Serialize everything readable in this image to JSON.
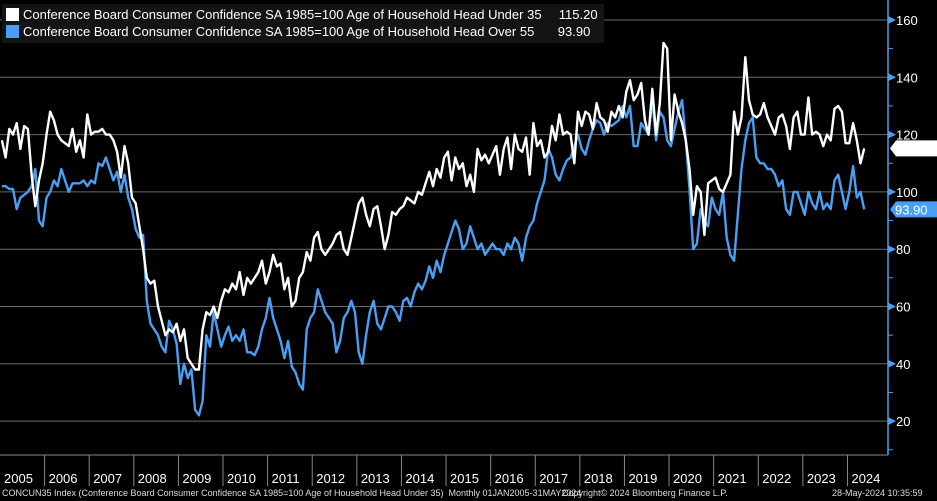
{
  "chart_data": {
    "type": "line",
    "x_start": "2005-01",
    "x_end": "2024-05",
    "frequency": "Monthly",
    "ylim": [
      15,
      168
    ],
    "y_ticks": [
      20,
      40,
      60,
      80,
      100,
      120,
      140,
      160
    ],
    "x_tick_labels": [
      "2005",
      "2006",
      "2007",
      "2008",
      "2009",
      "2010",
      "2011",
      "2012",
      "2013",
      "2014",
      "2015",
      "2016",
      "2017",
      "2018",
      "2019",
      "2020",
      "2021",
      "2022",
      "2023",
      "2024"
    ],
    "grid": true,
    "legend": "top-left",
    "axis_side": "right",
    "series": [
      {
        "name": "Conference Board Consumer Confidence SA 1985=100 Age of Household Head Under 35",
        "last": "115.20",
        "color": "#ffffff",
        "values": [
          118,
          112,
          122,
          120,
          124,
          115,
          123,
          122,
          106,
          95,
          104,
          110,
          120,
          128,
          125,
          120,
          118,
          117,
          116,
          122,
          114,
          118,
          112,
          127,
          120,
          121,
          121,
          122,
          120,
          120,
          118,
          114,
          105,
          116,
          110,
          98,
          96,
          88,
          80,
          70,
          68,
          69,
          60,
          55,
          50,
          52,
          51,
          54,
          48,
          52,
          42,
          40,
          38,
          38,
          52,
          58,
          57,
          60,
          56,
          62,
          66,
          65,
          68,
          66,
          72,
          64,
          70,
          68,
          70,
          72,
          76,
          68,
          72,
          78,
          74,
          75,
          66,
          70,
          60,
          62,
          70,
          72,
          79,
          76,
          84,
          86,
          80,
          78,
          80,
          82,
          85,
          86,
          80,
          78,
          84,
          90,
          96,
          98,
          92,
          88,
          94,
          95,
          88,
          80,
          85,
          93,
          92,
          94,
          95,
          98,
          97,
          96,
          100,
          99,
          103,
          107,
          102,
          108,
          105,
          112,
          114,
          104,
          112,
          108,
          110,
          102,
          106,
          100,
          115,
          111,
          113,
          110,
          113,
          116,
          106,
          115,
          119,
          108,
          120,
          115,
          114,
          119,
          106,
          124,
          116,
          118,
          112,
          114,
          123,
          118,
          127,
          120,
          121,
          120,
          110,
          128,
          123,
          128,
          127,
          122,
          131,
          126,
          125,
          121,
          128,
          126,
          130,
          126,
          135,
          139,
          132,
          134,
          138,
          125,
          120,
          136,
          120,
          131,
          152,
          150,
          118,
          134,
          128,
          124,
          118,
          108,
          92,
          102,
          100,
          85,
          103,
          104,
          105,
          101,
          100,
          103,
          106,
          128,
          120,
          126,
          147,
          132,
          127,
          126,
          127,
          131,
          126,
          123,
          120,
          126,
          127,
          123,
          115,
          126,
          128,
          120,
          120,
          133,
          120,
          121,
          120,
          116,
          120,
          118,
          129,
          130,
          128,
          117,
          117,
          124,
          118,
          110,
          115.2
        ]
      },
      {
        "name": "Conference Board Consumer Confidence SA 1985=100 Age of Household Head Over 55",
        "last": "93.90",
        "color": "#4a9ff5",
        "values": [
          102,
          102,
          101,
          101,
          94,
          98,
          99,
          100,
          102,
          108,
          90,
          88,
          98,
          100,
          104,
          102,
          108,
          104,
          100,
          103,
          103,
          103,
          104,
          102,
          104,
          103,
          110,
          109,
          112,
          108,
          104,
          107,
          100,
          106,
          98,
          94,
          87,
          84,
          85,
          62,
          54,
          52,
          50,
          46,
          44,
          55,
          52,
          47,
          33,
          40,
          35,
          38,
          24,
          22,
          27,
          50,
          46,
          58,
          52,
          46,
          50,
          53,
          48,
          50,
          48,
          52,
          44,
          44,
          43,
          46,
          52,
          56,
          63,
          56,
          52,
          48,
          42,
          48,
          39,
          37,
          33,
          31,
          52,
          56,
          58,
          66,
          62,
          58,
          56,
          54,
          44,
          48,
          56,
          58,
          62,
          58,
          44,
          40,
          50,
          58,
          62,
          54,
          52,
          56,
          60,
          60,
          58,
          55,
          62,
          63,
          60,
          65,
          68,
          66,
          69,
          74,
          70,
          76,
          72,
          78,
          82,
          86,
          90,
          87,
          80,
          82,
          88,
          84,
          80,
          82,
          78,
          80,
          82,
          80,
          80,
          78,
          82,
          80,
          84,
          82,
          76,
          84,
          88,
          90,
          96,
          100,
          104,
          115,
          112,
          106,
          104,
          108,
          111,
          112,
          116,
          120,
          115,
          113,
          118,
          122,
          125,
          124,
          120,
          124,
          123,
          124,
          125,
          130,
          126,
          130,
          116,
          116,
          124,
          122,
          120,
          132,
          118,
          128,
          126,
          118,
          116,
          122,
          128,
          132,
          118,
          101,
          80,
          82,
          94,
          90,
          88,
          98,
          94,
          92,
          100,
          84,
          78,
          76,
          92,
          108,
          118,
          124,
          126,
          112,
          110,
          110,
          108,
          108,
          106,
          102,
          104,
          94,
          92,
          100,
          100,
          96,
          92,
          100,
          96,
          94,
          100,
          94,
          96,
          94,
          104,
          106,
          100,
          94,
          100,
          109,
          98,
          100,
          93.9
        ]
      }
    ]
  },
  "footer": {
    "index": "CONCUN35 Index (Conference Board Consumer Confidence SA 1985=100 Age of Household Head Under 35)  Monthly 01JAN2005-31MAY2024",
    "copyright": "Copyright© 2024 Bloomberg Finance L.P.",
    "timestamp": "28-May-2024 10:35:59"
  }
}
